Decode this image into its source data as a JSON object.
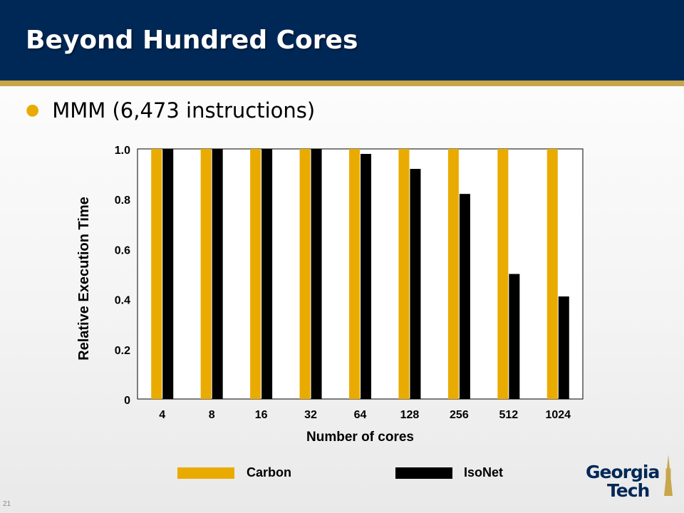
{
  "slide": {
    "title": "Beyond Hundred Cores",
    "bullet": "MMM (6,473 instructions)",
    "slide_number": "21"
  },
  "logo": {
    "line1": "Georgia",
    "line2": "Tech"
  },
  "colors": {
    "header": "#002856",
    "accent": "#c8a64b",
    "carbon": "#eaab00",
    "isonet": "#000000"
  },
  "chart_data": {
    "type": "bar",
    "categories": [
      "4",
      "8",
      "16",
      "32",
      "64",
      "128",
      "256",
      "512",
      "1024"
    ],
    "series": [
      {
        "name": "Carbon",
        "values": [
          1.0,
          1.0,
          1.0,
          1.0,
          1.0,
          1.0,
          1.0,
          1.0,
          1.0
        ]
      },
      {
        "name": "IsoNet",
        "values": [
          1.0,
          1.0,
          1.0,
          1.0,
          0.98,
          0.92,
          0.82,
          0.5,
          0.41
        ]
      }
    ],
    "xlabel": "Number of cores",
    "ylabel": "Relative Execution Time",
    "yticks": [
      "0",
      "0.2",
      "0.4",
      "0.6",
      "0.8",
      "1.0"
    ],
    "ylim": [
      0,
      1.0
    ],
    "grid": false,
    "legend_position": "bottom"
  }
}
